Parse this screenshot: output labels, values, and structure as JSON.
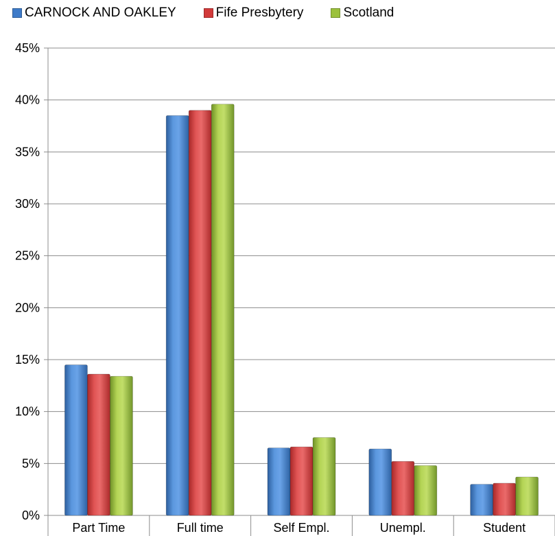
{
  "chart_data": {
    "type": "bar",
    "categories": [
      "Part Time",
      "Full time",
      "Self Empl.",
      "Unempl.",
      "Student"
    ],
    "series": [
      {
        "name": "CARNOCK AND OAKLEY",
        "color": "#3e7bc9",
        "values": [
          14.5,
          38.5,
          6.5,
          6.4,
          3.0
        ]
      },
      {
        "name": "Fife Presbytery",
        "color": "#d23a3a",
        "values": [
          13.6,
          39.0,
          6.6,
          5.2,
          3.1
        ]
      },
      {
        "name": "Scotland",
        "color": "#9bc13c",
        "values": [
          13.4,
          39.6,
          7.5,
          4.8,
          3.7
        ]
      }
    ],
    "ylim": [
      0,
      45
    ],
    "yticks": [
      0,
      5,
      10,
      15,
      20,
      25,
      30,
      35,
      40,
      45
    ],
    "ytick_labels": [
      "0%",
      "5%",
      "10%",
      "15%",
      "20%",
      "25%",
      "30%",
      "35%",
      "40%",
      "45%"
    ],
    "grid": true,
    "legend_position": "top-left",
    "title": "",
    "xlabel": "",
    "ylabel": ""
  }
}
